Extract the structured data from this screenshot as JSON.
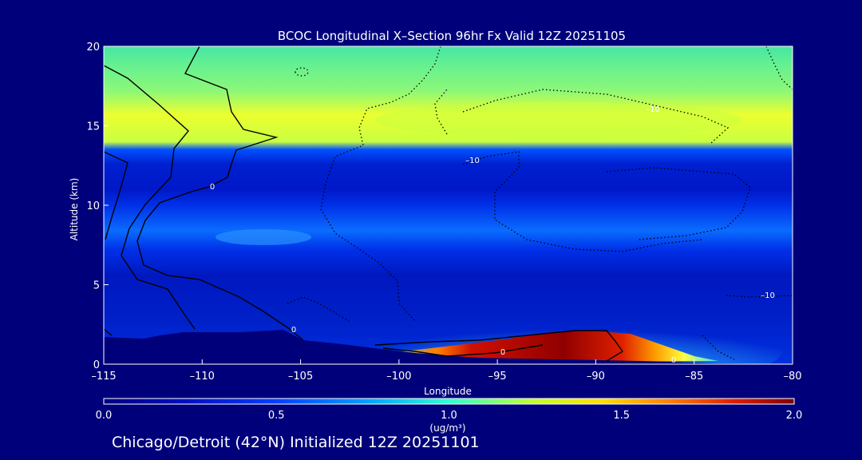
{
  "chart_data": {
    "type": "heatmap",
    "title": "BCOC Longitudinal X–Section 96hr  Fx Valid 12Z 20251105",
    "xlabel": "Longitude",
    "ylabel": "Altitude (km)",
    "xlim": [
      -115,
      -80
    ],
    "ylim": [
      0,
      20
    ],
    "x_ticks": [
      -115,
      -110,
      -105,
      -100,
      -95,
      -90,
      -85,
      -80
    ],
    "x_tick_labels": [
      "–115",
      "–110",
      "–105",
      "–100",
      "–95",
      "–90",
      "–85",
      "–80"
    ],
    "y_ticks": [
      0,
      5,
      10,
      15,
      20
    ],
    "y_tick_labels": [
      "0",
      "5",
      "10",
      "15",
      "20"
    ],
    "colorbar": {
      "min": 0.0,
      "max": 2.0,
      "ticks": [
        0.0,
        0.5,
        1.0,
        1.5,
        2.0
      ],
      "tick_labels": [
        "0.0",
        "0.5",
        "1.0",
        "1.5",
        "2.0"
      ],
      "unit_label": "(ug/m³)",
      "colors": [
        "#000080",
        "#0010c0",
        "#0040ff",
        "#00a0ff",
        "#30ffd0",
        "#c0ff30",
        "#ffe000",
        "#ff8000",
        "#e02000",
        "#800000"
      ]
    },
    "concentration_bands": [
      {
        "alt_range": [
          13.5,
          20
        ],
        "value": 0.95,
        "note": "upper layer, peak near 14.5 km"
      },
      {
        "alt_range": [
          12.5,
          13.5
        ],
        "value": 0.35
      },
      {
        "alt_range": [
          9,
          12.5
        ],
        "value": 0.1
      },
      {
        "alt_range": [
          7.5,
          8.5
        ],
        "value": 0.45
      },
      {
        "alt_range": [
          2,
          7.5
        ],
        "value": 0.2
      }
    ],
    "surface_plume": {
      "lon_range": [
        -97,
        -86
      ],
      "alt_max": 2,
      "peak_value": 2.0,
      "peak_lon": -91
    },
    "contour_labels": [
      "–10",
      "–10",
      "0",
      "0",
      "0",
      "–10",
      "0"
    ],
    "annotation_footer": "Chicago/Detroit (42°N) Initialized 12Z 20251101"
  }
}
